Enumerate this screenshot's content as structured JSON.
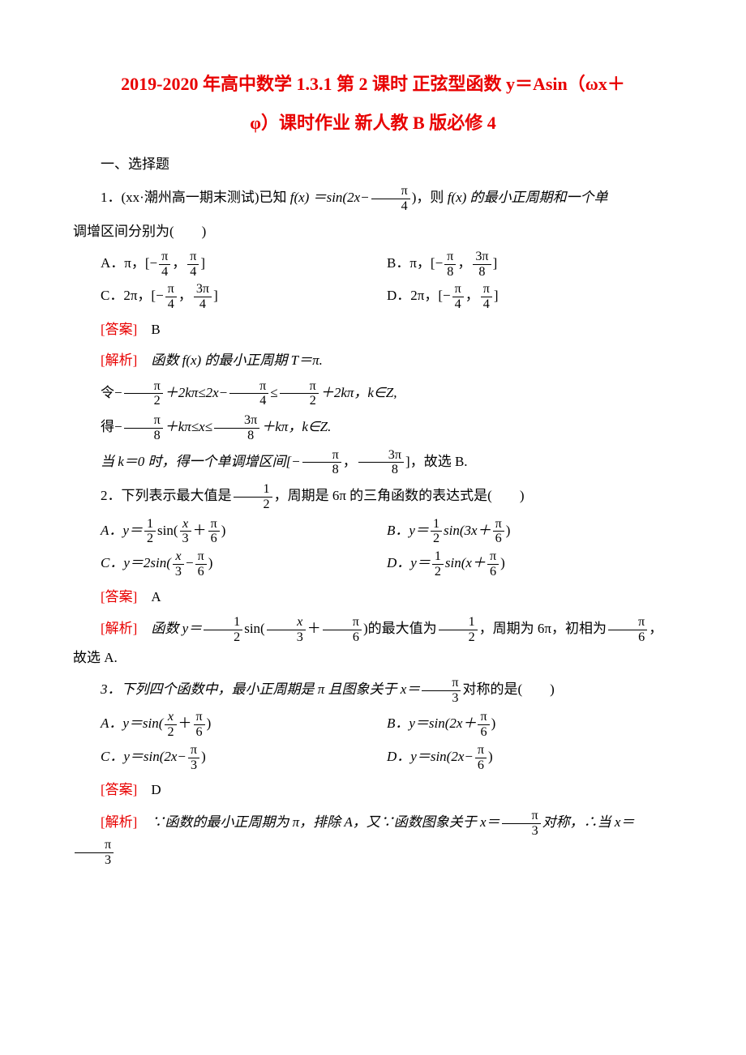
{
  "title_line1": "2019-2020 年高中数学 1.3.1 第 2 课时 正弦型函数 y＝Asin（ωx＋",
  "title_line2": "φ）课时作业 新人教 B 版必修 4",
  "sec1": "一、选择题",
  "q1": {
    "stem_a": "1．(xx·潮州高一期末测试)已知 ",
    "fx": "f",
    "stem_mid": "(x) ＝sin(2x−",
    "fr_n": "π",
    "fr_d": "4",
    "stem_b": ")，则 ",
    "stem_c": "(x) 的最小正周期和一个单",
    "stem_d": "调增区间分别为(　　)",
    "A_a": "A．π，[−",
    "A_n1": "π",
    "A_d1": "4",
    "A_m": "，",
    "A_n2": "π",
    "A_d2": "4",
    "A_b": "]",
    "B_a": "B．π，[−",
    "B_n1": "π",
    "B_d1": "8",
    "B_m": "，",
    "B_n2": "3π",
    "B_d2": "8",
    "B_b": "]",
    "C_a": "C．2π，[−",
    "C_n1": "π",
    "C_d1": "4",
    "C_m": "，",
    "C_n2": "3π",
    "C_d2": "4",
    "C_b": "]",
    "D_a": "D．2π，[−",
    "D_n1": "π",
    "D_d1": "4",
    "D_m": "，",
    "D_n2": "π",
    "D_d2": "4",
    "D_b": "]",
    "ans_label": "[答案]",
    "ans": "　B",
    "exp_label": "[解析]",
    "exp1": "　函数 f(x) 的最小正周期 T＝π.",
    "exp2_a": "令−",
    "e2n1": "π",
    "e2d1": "2",
    "exp2_b": "＋2kπ≤2x−",
    "e2n2": "π",
    "e2d2": "4",
    "exp2_c": "≤",
    "e2n3": "π",
    "e2d3": "2",
    "exp2_d": "＋2kπ，k∈Z,",
    "exp3_a": "得−",
    "e3n1": "π",
    "e3d1": "8",
    "exp3_b": "＋kπ≤x≤",
    "e3n2": "3π",
    "e3d2": "8",
    "exp3_c": "＋kπ，k∈Z.",
    "exp4_a": "当 k＝0 时，得一个单调增区间[−",
    "e4n1": "π",
    "e4d1": "8",
    "exp4_b": "，",
    "e4n2": "3π",
    "e4d2": "8",
    "exp4_c": "]，故选 B."
  },
  "q2": {
    "stem_a": "2．下列表示最大值是",
    "sn": "1",
    "sd": "2",
    "stem_b": "，周期是 6π 的三角函数的表达式是(　　)",
    "A_a": "A．y＝",
    "An1": "1",
    "Ad1": "2",
    "A_b": "sin(",
    "An2": "x",
    "Ad2": "3",
    "A_c": "＋",
    "An3": "π",
    "Ad3": "6",
    "A_d": ")",
    "B_a": "B．y＝",
    "Bn1": "1",
    "Bd1": "2",
    "B_b": "sin(3x＋",
    "Bn2": "π",
    "Bd2": "6",
    "B_c": ")",
    "C_a": "C．y＝2sin(",
    "Cn1": "x",
    "Cd1": "3",
    "C_b": "−",
    "Cn2": "π",
    "Cd2": "6",
    "C_c": ")",
    "D_a": "D．y＝",
    "Dn1": "1",
    "Dd1": "2",
    "D_b": "sin(x＋",
    "Dn2": "π",
    "Dd2": "6",
    "D_c": ")",
    "ans_label": "[答案]",
    "ans": "　A",
    "exp_label": "[解析]",
    "exp_a": "　函数 y＝",
    "en1": "1",
    "ed1": "2",
    "exp_b": "sin(",
    "en2": "x",
    "ed2": "3",
    "exp_c": "＋",
    "en3": "π",
    "ed3": "6",
    "exp_d": ")的最大值为",
    "en4": "1",
    "ed4": "2",
    "exp_e": "，周期为 6π，初相为",
    "en5": "π",
    "ed5": "6",
    "exp_f": "，故选 A."
  },
  "q3": {
    "stem_a": "3．下列四个函数中，最小正周期是 π 且图象关于 x＝",
    "sn": "π",
    "sd": "3",
    "stem_b": "对称的是(　　)",
    "A_a": "A．y＝sin(",
    "An1": "x",
    "Ad1": "2",
    "A_b": "＋",
    "An2": "π",
    "Ad2": "6",
    "A_c": ")",
    "B_a": "B．y＝sin(2x＋",
    "Bn1": "π",
    "Bd1": "6",
    "B_b": ")",
    "C_a": "C．y＝sin(2x−",
    "Cn1": "π",
    "Cd1": "3",
    "C_b": ")",
    "D_a": "D．y＝sin(2x−",
    "Dn1": "π",
    "Dd1": "6",
    "D_b": ")",
    "ans_label": "[答案]",
    "ans": "　D",
    "exp_label": "[解析]",
    "exp_a": "　∵函数的最小正周期为 π，排除 A，又∵函数图象关于 x＝",
    "en1": "π",
    "ed1": "3",
    "exp_b": "对称，∴当 x＝",
    "en2": "π",
    "ed2": "3"
  }
}
